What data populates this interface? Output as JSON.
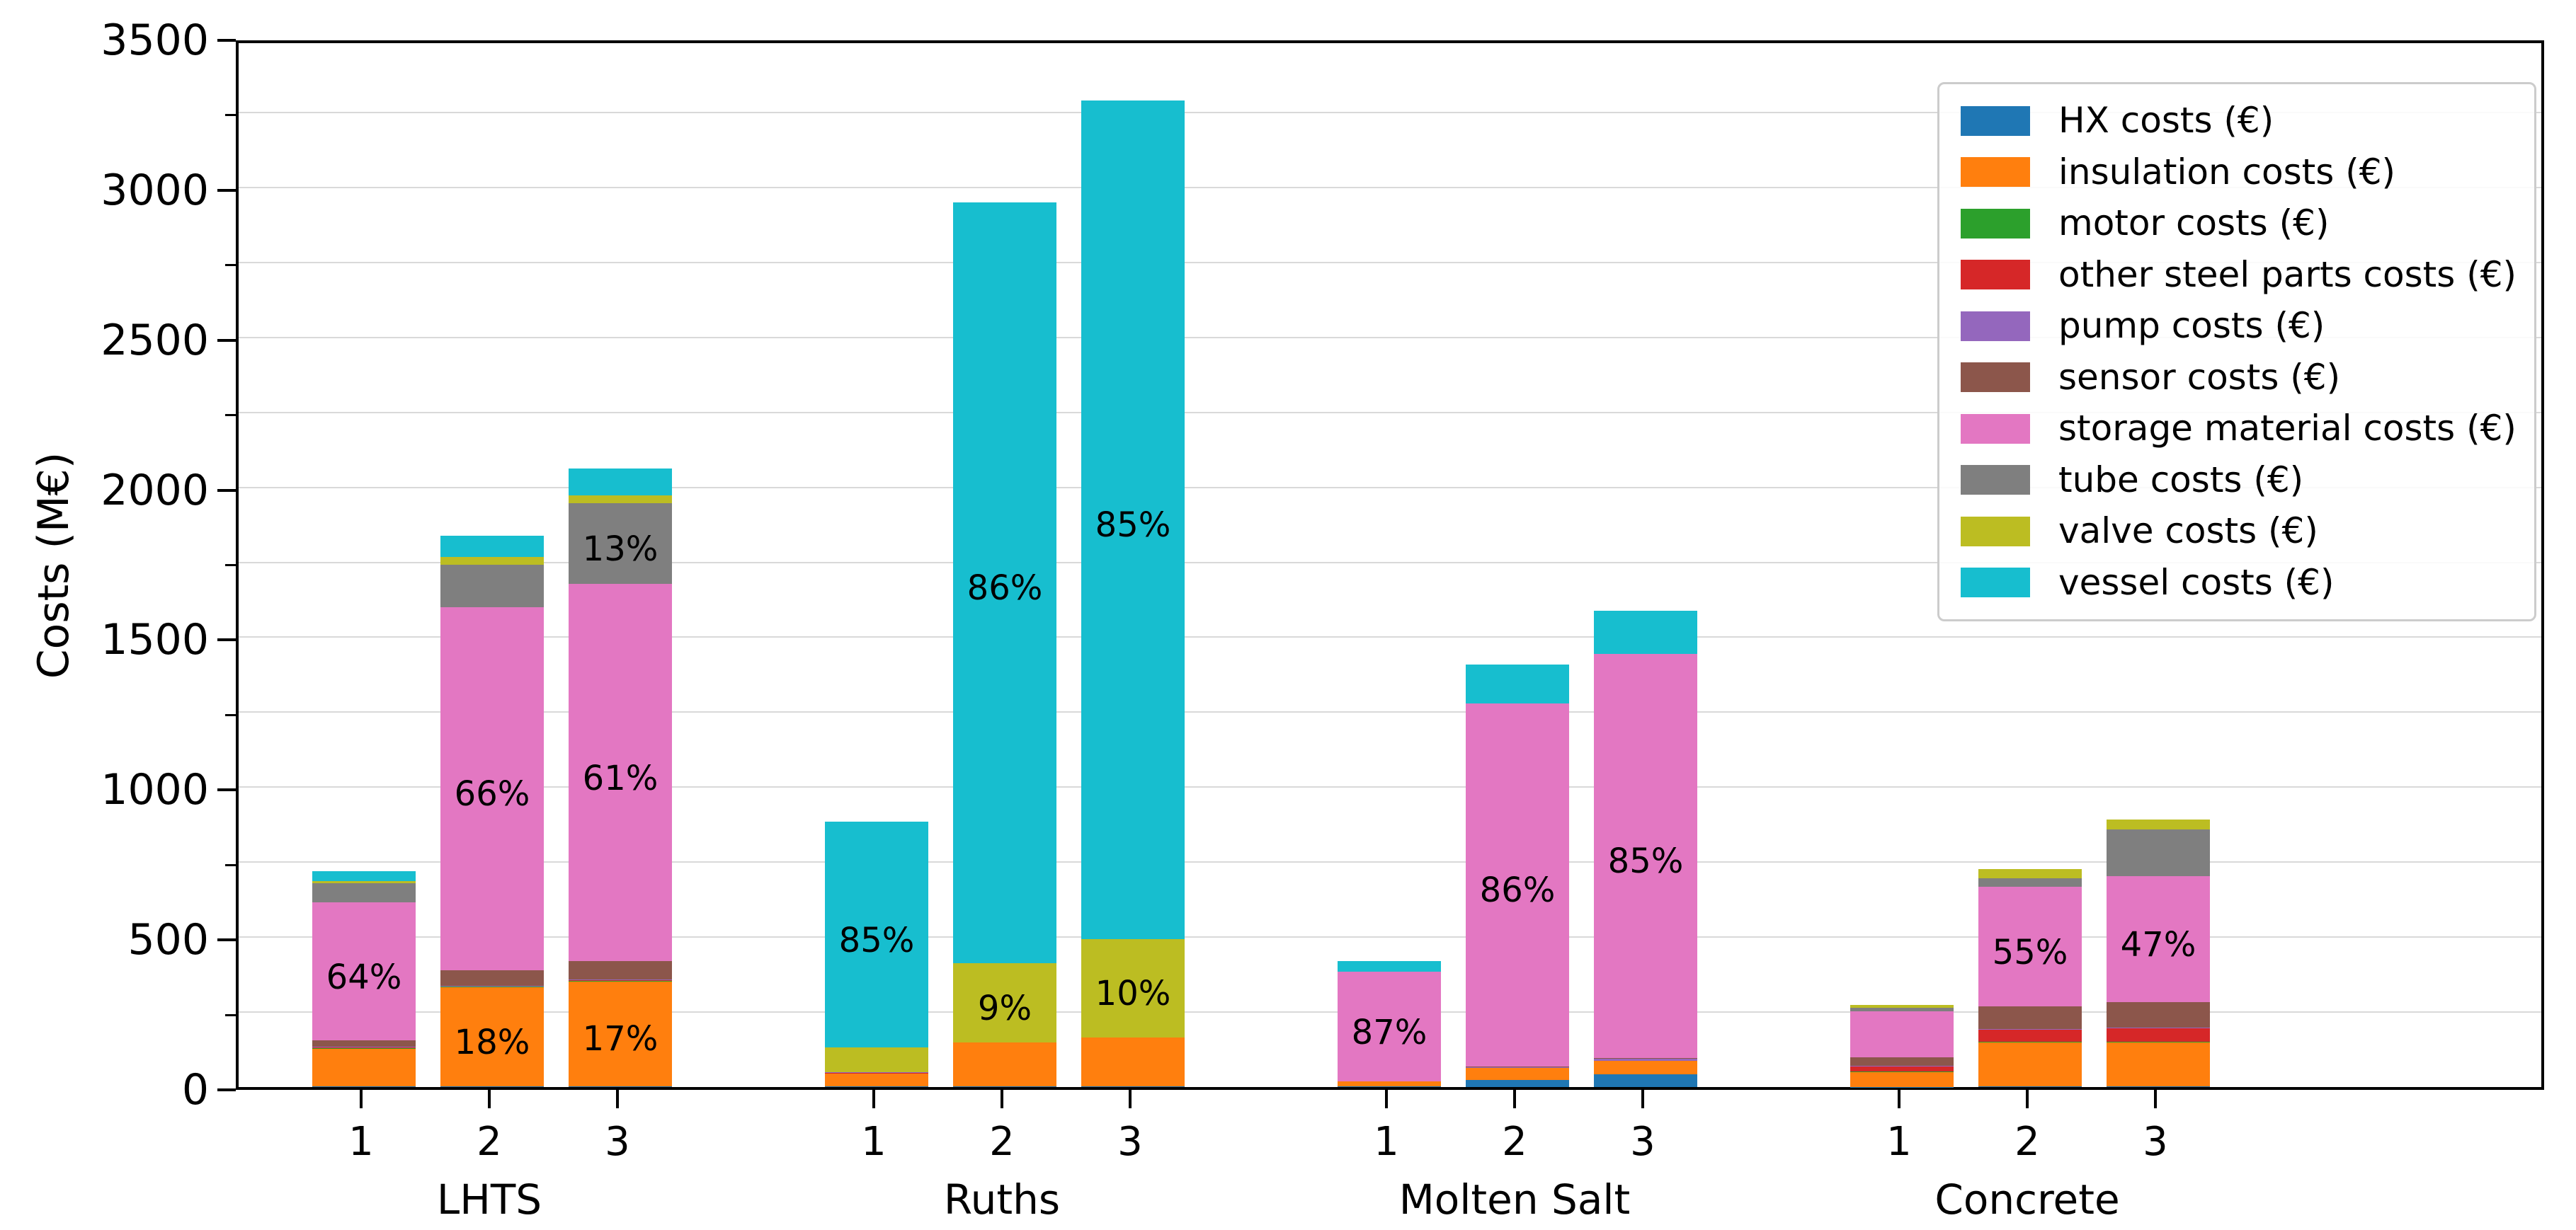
{
  "chart_data": {
    "type": "bar",
    "stacked": true,
    "title": "",
    "xlabel": "",
    "ylabel": "Costs (M€)",
    "unit": "M€",
    "ylim": [
      0,
      3500
    ],
    "ytick_interval": 500,
    "ytick_labels": [
      "0",
      "500",
      "1000",
      "1500",
      "2000",
      "2500",
      "3000",
      "3500"
    ],
    "grid_interval": 250,
    "grid": true,
    "legend_position": "upper right",
    "series": [
      {
        "key": "hx",
        "label": "HX costs (€)",
        "color": "#1f77b4"
      },
      {
        "key": "insulation",
        "label": "insulation costs (€)",
        "color": "#ff7f0e"
      },
      {
        "key": "motor",
        "label": "motor costs (€)",
        "color": "#2ca02c"
      },
      {
        "key": "other_steel",
        "label": "other steel parts costs (€)",
        "color": "#d62728"
      },
      {
        "key": "pump",
        "label": "pump costs (€)",
        "color": "#9467bd"
      },
      {
        "key": "sensor",
        "label": "sensor costs (€)",
        "color": "#8c564b"
      },
      {
        "key": "storage",
        "label": "storage material costs (€)",
        "color": "#e377c2"
      },
      {
        "key": "tube",
        "label": "tube costs (€)",
        "color": "#7f7f7f"
      },
      {
        "key": "valve",
        "label": "valve costs (€)",
        "color": "#bcbd22"
      },
      {
        "key": "vessel",
        "label": "vessel costs (€)",
        "color": "#17becf"
      }
    ],
    "groups": [
      {
        "label": "LHTS",
        "bars": [
          {
            "tick": "1",
            "total": 720,
            "segments": {
              "hx": 2,
              "insulation": 128,
              "motor": 1,
              "other_steel": 2,
              "pump": 1,
              "sensor": 21,
              "storage": 460,
              "tube": 64,
              "valve": 9,
              "vessel": 32
            },
            "labels": [
              {
                "series": "storage",
                "text": "64%"
              }
            ]
          },
          {
            "tick": "2",
            "total": 1838,
            "segments": {
              "hx": 3,
              "insulation": 331,
              "motor": 1,
              "other_steel": 2,
              "pump": 1,
              "sensor": 51,
              "storage": 1212,
              "tube": 140,
              "valve": 26,
              "vessel": 71
            },
            "labels": [
              {
                "series": "insulation",
                "text": "18%"
              },
              {
                "series": "storage",
                "text": "66%"
              }
            ]
          },
          {
            "tick": "3",
            "total": 2062,
            "segments": {
              "hx": 3,
              "insulation": 351,
              "motor": 1,
              "other_steel": 2,
              "pump": 1,
              "sensor": 62,
              "storage": 1258,
              "tube": 268,
              "valve": 27,
              "vessel": 89
            },
            "labels": [
              {
                "series": "insulation",
                "text": "17%"
              },
              {
                "series": "storage",
                "text": "61%"
              },
              {
                "series": "tube",
                "text": "13%"
              }
            ]
          }
        ]
      },
      {
        "label": "Ruths",
        "bars": [
          {
            "tick": "1",
            "total": 884,
            "segments": {
              "hx": 2,
              "insulation": 45,
              "motor": 0,
              "other_steel": 1,
              "pump": 1,
              "sensor": 0,
              "storage": 0,
              "tube": 0,
              "valve": 83,
              "vessel": 752
            },
            "labels": [
              {
                "series": "vessel",
                "text": "85%"
              }
            ]
          },
          {
            "tick": "2",
            "total": 2950,
            "segments": {
              "hx": 3,
              "insulation": 146,
              "motor": 0,
              "other_steel": 0,
              "pump": 0,
              "sensor": 0,
              "storage": 0,
              "tube": 0,
              "valve": 265,
              "vessel": 2536
            },
            "labels": [
              {
                "series": "valve",
                "text": "9%"
              },
              {
                "series": "vessel",
                "text": "86%"
              }
            ]
          },
          {
            "tick": "3",
            "total": 3290,
            "segments": {
              "hx": 3,
              "insulation": 162,
              "motor": 0,
              "other_steel": 0,
              "pump": 0,
              "sensor": 0,
              "storage": 0,
              "tube": 0,
              "valve": 329,
              "vessel": 2796
            },
            "labels": [
              {
                "series": "valve",
                "text": "10%"
              },
              {
                "series": "vessel",
                "text": "85%"
              }
            ]
          }
        ]
      },
      {
        "label": "Molten Salt",
        "bars": [
          {
            "tick": "1",
            "total": 420,
            "segments": {
              "hx": 2,
              "insulation": 16,
              "motor": 0,
              "other_steel": 0,
              "pump": 0,
              "sensor": 0,
              "storage": 366,
              "tube": 0,
              "valve": 0,
              "vessel": 36
            },
            "labels": [
              {
                "series": "storage",
                "text": "87%"
              }
            ]
          },
          {
            "tick": "2",
            "total": 1410,
            "segments": {
              "hx": 23,
              "insulation": 40,
              "motor": 0,
              "other_steel": 0,
              "pump": 3,
              "sensor": 2,
              "storage": 1212,
              "tube": 0,
              "valve": 0,
              "vessel": 130
            },
            "labels": [
              {
                "series": "storage",
                "text": "86%"
              }
            ]
          },
          {
            "tick": "3",
            "total": 1588,
            "segments": {
              "hx": 42,
              "insulation": 45,
              "motor": 0,
              "other_steel": 0,
              "pump": 8,
              "sensor": 2,
              "storage": 1348,
              "tube": 0,
              "valve": 0,
              "vessel": 143
            },
            "labels": [
              {
                "series": "storage",
                "text": "85%"
              }
            ]
          }
        ]
      },
      {
        "label": "Concrete",
        "bars": [
          {
            "tick": "1",
            "total": 274,
            "segments": {
              "hx": 1,
              "insulation": 51,
              "motor": 1,
              "other_steel": 17,
              "pump": 1,
              "sensor": 28,
              "storage": 153,
              "tube": 12,
              "valve": 10,
              "vessel": 0
            },
            "labels": []
          },
          {
            "tick": "2",
            "total": 727,
            "segments": {
              "hx": 2,
              "insulation": 146,
              "motor": 2,
              "other_steel": 42,
              "pump": 1,
              "sensor": 75,
              "storage": 400,
              "tube": 28,
              "valve": 31,
              "vessel": 0
            },
            "labels": [
              {
                "series": "storage",
                "text": "55%"
              }
            ]
          },
          {
            "tick": "3",
            "total": 893,
            "segments": {
              "hx": 2,
              "insulation": 148,
              "motor": 2,
              "other_steel": 45,
              "pump": 1,
              "sensor": 85,
              "storage": 420,
              "tube": 155,
              "valve": 35,
              "vessel": 0
            },
            "labels": [
              {
                "series": "storage",
                "text": "47%"
              }
            ]
          }
        ]
      }
    ]
  }
}
